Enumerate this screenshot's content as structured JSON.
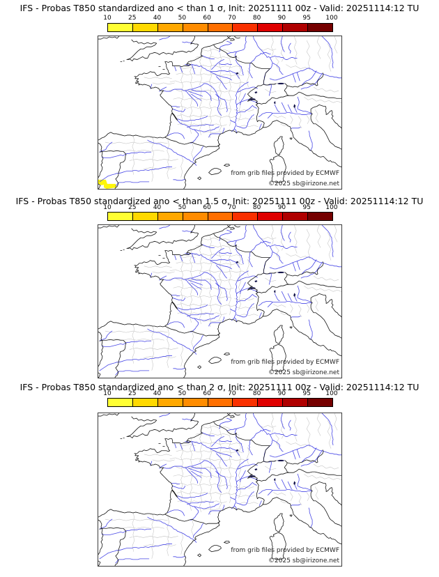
{
  "panels": [
    {
      "title": "IFS - Probas T850  standardized ano < than 1 σ, Init: 20251111 00z - Valid: 20251114:12 TU",
      "threshold": "1 σ",
      "has_probability_patches": true
    },
    {
      "title": "IFS - Probas T850  standardized ano < than 1.5 σ, Init: 20251111 00z - Valid: 20251114:12 TU",
      "threshold": "1.5 σ",
      "has_probability_patches": false
    },
    {
      "title": "IFS - Probas T850  standardized ano < than 2 σ, Init: 20251111 00z - Valid: 20251114:12 TU",
      "threshold": "2 σ",
      "has_probability_patches": false
    }
  ],
  "colorbar": {
    "ticks": [
      "10",
      "25",
      "40",
      "50",
      "60",
      "70",
      "80",
      "90",
      "95",
      "100"
    ],
    "segment_colors": [
      "#ffff33",
      "#ffd900",
      "#ffa800",
      "#ff8c00",
      "#ff6f00",
      "#f93000",
      "#df0000",
      "#af0000",
      "#750000"
    ]
  },
  "map": {
    "credit": "from grib files provided by ECMWF",
    "copyright": "©2025 sb@irizone.net",
    "colors": {
      "coastline": "#141414",
      "river": "#4747e6",
      "admin_border": "#c2c2c2",
      "lake": "#14144a",
      "probability_patch": "#fff60a",
      "frame": "#3a3a3a"
    }
  }
}
